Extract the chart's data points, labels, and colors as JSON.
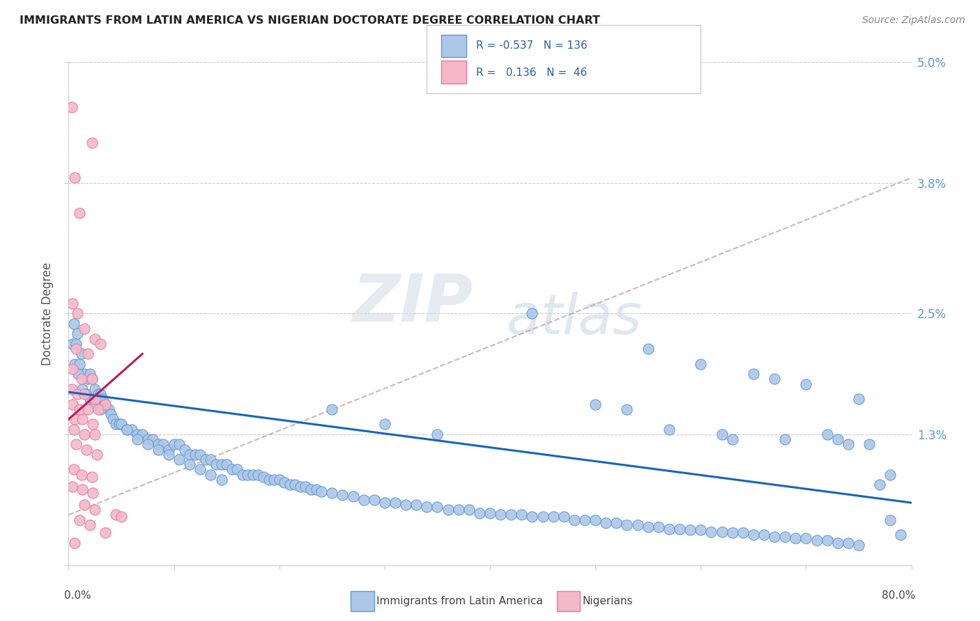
{
  "title": "IMMIGRANTS FROM LATIN AMERICA VS NIGERIAN DOCTORATE DEGREE CORRELATION CHART",
  "source": "Source: ZipAtlas.com",
  "ylabel": "Doctorate Degree",
  "ytick_vals": [
    0.0,
    1.3,
    2.5,
    3.8,
    5.0
  ],
  "ytick_labels": [
    "",
    "1.3%",
    "2.5%",
    "3.8%",
    "5.0%"
  ],
  "legend_bottom": [
    "Immigrants from Latin America",
    "Nigerians"
  ],
  "watermark_zip": "ZIP",
  "watermark_atlas": "atlas",
  "blue_color": "#5b9bd5",
  "pink_color": "#e87aA0",
  "blue_light": "#aec6e8",
  "pink_light": "#f4b8c8",
  "trend_blue_color": "#1565c0",
  "trend_pink_color": "#c2185b",
  "trend_dash_color": "#c8a0a8",
  "xmin": 0.0,
  "xmax": 80.0,
  "ymin": 0.0,
  "ymax": 5.0,
  "blue_trend": [
    1.72,
    0.62
  ],
  "pink_trend_x": [
    0.0,
    7.0
  ],
  "pink_trend_y": [
    1.45,
    2.1
  ],
  "dash_trend": [
    0.5,
    3.85
  ],
  "blue_points": [
    [
      0.5,
      2.4
    ],
    [
      0.8,
      2.3
    ],
    [
      0.4,
      2.2
    ],
    [
      1.2,
      2.1
    ],
    [
      0.6,
      2.0
    ],
    [
      1.0,
      2.0
    ],
    [
      0.7,
      2.2
    ],
    [
      1.5,
      1.9
    ],
    [
      0.9,
      1.9
    ],
    [
      1.8,
      1.85
    ],
    [
      2.0,
      1.9
    ],
    [
      2.2,
      1.85
    ],
    [
      2.5,
      1.75
    ],
    [
      2.8,
      1.7
    ],
    [
      3.0,
      1.7
    ],
    [
      3.2,
      1.65
    ],
    [
      3.5,
      1.6
    ],
    [
      3.8,
      1.55
    ],
    [
      4.0,
      1.5
    ],
    [
      1.3,
      1.75
    ],
    [
      1.6,
      1.7
    ],
    [
      2.0,
      1.65
    ],
    [
      2.5,
      1.6
    ],
    [
      3.0,
      1.55
    ],
    [
      4.2,
      1.45
    ],
    [
      4.5,
      1.4
    ],
    [
      4.8,
      1.4
    ],
    [
      5.0,
      1.4
    ],
    [
      5.5,
      1.35
    ],
    [
      6.0,
      1.35
    ],
    [
      6.5,
      1.3
    ],
    [
      7.0,
      1.3
    ],
    [
      7.5,
      1.25
    ],
    [
      8.0,
      1.25
    ],
    [
      8.5,
      1.2
    ],
    [
      9.0,
      1.2
    ],
    [
      9.5,
      1.15
    ],
    [
      10.0,
      1.2
    ],
    [
      10.5,
      1.2
    ],
    [
      11.0,
      1.15
    ],
    [
      11.5,
      1.1
    ],
    [
      12.0,
      1.1
    ],
    [
      12.5,
      1.1
    ],
    [
      13.0,
      1.05
    ],
    [
      13.5,
      1.05
    ],
    [
      14.0,
      1.0
    ],
    [
      14.5,
      1.0
    ],
    [
      15.0,
      1.0
    ],
    [
      15.5,
      0.95
    ],
    [
      16.0,
      0.95
    ],
    [
      16.5,
      0.9
    ],
    [
      17.0,
      0.9
    ],
    [
      17.5,
      0.9
    ],
    [
      18.0,
      0.9
    ],
    [
      18.5,
      0.88
    ],
    [
      19.0,
      0.85
    ],
    [
      19.5,
      0.85
    ],
    [
      20.0,
      0.85
    ],
    [
      5.5,
      1.35
    ],
    [
      6.5,
      1.25
    ],
    [
      7.5,
      1.2
    ],
    [
      8.5,
      1.15
    ],
    [
      9.5,
      1.1
    ],
    [
      10.5,
      1.05
    ],
    [
      11.5,
      1.0
    ],
    [
      12.5,
      0.95
    ],
    [
      13.5,
      0.9
    ],
    [
      14.5,
      0.85
    ],
    [
      20.5,
      0.82
    ],
    [
      21.0,
      0.8
    ],
    [
      21.5,
      0.8
    ],
    [
      22.0,
      0.78
    ],
    [
      22.5,
      0.78
    ],
    [
      23.0,
      0.75
    ],
    [
      23.5,
      0.75
    ],
    [
      24.0,
      0.73
    ],
    [
      25.0,
      0.72
    ],
    [
      26.0,
      0.7
    ],
    [
      27.0,
      0.68
    ],
    [
      28.0,
      0.65
    ],
    [
      29.0,
      0.65
    ],
    [
      30.0,
      0.62
    ],
    [
      31.0,
      0.62
    ],
    [
      32.0,
      0.6
    ],
    [
      33.0,
      0.6
    ],
    [
      34.0,
      0.58
    ],
    [
      35.0,
      0.58
    ],
    [
      36.0,
      0.55
    ],
    [
      37.0,
      0.55
    ],
    [
      38.0,
      0.55
    ],
    [
      39.0,
      0.52
    ],
    [
      40.0,
      0.52
    ],
    [
      41.0,
      0.5
    ],
    [
      42.0,
      0.5
    ],
    [
      43.0,
      0.5
    ],
    [
      44.0,
      0.48
    ],
    [
      45.0,
      0.48
    ],
    [
      46.0,
      0.48
    ],
    [
      47.0,
      0.48
    ],
    [
      48.0,
      0.45
    ],
    [
      49.0,
      0.45
    ],
    [
      50.0,
      0.45
    ],
    [
      25.0,
      1.55
    ],
    [
      30.0,
      1.4
    ],
    [
      35.0,
      1.3
    ],
    [
      44.0,
      2.5
    ],
    [
      50.0,
      1.6
    ],
    [
      53.0,
      1.55
    ],
    [
      55.0,
      2.15
    ],
    [
      57.0,
      1.35
    ],
    [
      60.0,
      2.0
    ],
    [
      62.0,
      1.3
    ],
    [
      63.0,
      1.25
    ],
    [
      65.0,
      1.9
    ],
    [
      67.0,
      1.85
    ],
    [
      68.0,
      1.25
    ],
    [
      70.0,
      1.8
    ],
    [
      72.0,
      1.3
    ],
    [
      73.0,
      1.25
    ],
    [
      74.0,
      1.2
    ],
    [
      75.0,
      1.65
    ],
    [
      76.0,
      1.2
    ],
    [
      77.0,
      0.8
    ],
    [
      78.0,
      0.9
    ],
    [
      51.0,
      0.42
    ],
    [
      52.0,
      0.42
    ],
    [
      53.0,
      0.4
    ],
    [
      54.0,
      0.4
    ],
    [
      55.0,
      0.38
    ],
    [
      56.0,
      0.38
    ],
    [
      57.0,
      0.36
    ],
    [
      58.0,
      0.36
    ],
    [
      59.0,
      0.35
    ],
    [
      60.0,
      0.35
    ],
    [
      61.0,
      0.33
    ],
    [
      62.0,
      0.33
    ],
    [
      63.0,
      0.32
    ],
    [
      64.0,
      0.32
    ],
    [
      65.0,
      0.3
    ],
    [
      66.0,
      0.3
    ],
    [
      67.0,
      0.28
    ],
    [
      68.0,
      0.28
    ],
    [
      69.0,
      0.27
    ],
    [
      70.0,
      0.27
    ],
    [
      71.0,
      0.25
    ],
    [
      72.0,
      0.25
    ],
    [
      73.0,
      0.22
    ],
    [
      74.0,
      0.22
    ],
    [
      75.0,
      0.2
    ],
    [
      78.0,
      0.45
    ],
    [
      79.0,
      0.3
    ]
  ],
  "pink_points": [
    [
      0.3,
      4.55
    ],
    [
      2.2,
      4.2
    ],
    [
      0.6,
      3.85
    ],
    [
      1.0,
      3.5
    ],
    [
      0.4,
      2.6
    ],
    [
      0.8,
      2.5
    ],
    [
      1.5,
      2.35
    ],
    [
      2.5,
      2.25
    ],
    [
      0.7,
      2.15
    ],
    [
      1.8,
      2.1
    ],
    [
      3.0,
      2.2
    ],
    [
      0.4,
      1.95
    ],
    [
      1.2,
      1.85
    ],
    [
      2.2,
      1.85
    ],
    [
      0.3,
      1.75
    ],
    [
      0.8,
      1.7
    ],
    [
      1.5,
      1.7
    ],
    [
      2.5,
      1.65
    ],
    [
      3.5,
      1.6
    ],
    [
      0.4,
      1.6
    ],
    [
      1.0,
      1.55
    ],
    [
      1.8,
      1.55
    ],
    [
      2.8,
      1.55
    ],
    [
      0.6,
      1.45
    ],
    [
      1.3,
      1.45
    ],
    [
      2.3,
      1.4
    ],
    [
      0.5,
      1.35
    ],
    [
      1.5,
      1.3
    ],
    [
      2.5,
      1.3
    ],
    [
      0.7,
      1.2
    ],
    [
      1.7,
      1.15
    ],
    [
      2.7,
      1.1
    ],
    [
      0.5,
      0.95
    ],
    [
      1.2,
      0.9
    ],
    [
      2.2,
      0.88
    ],
    [
      0.4,
      0.78
    ],
    [
      1.3,
      0.75
    ],
    [
      2.3,
      0.72
    ],
    [
      1.5,
      0.6
    ],
    [
      2.5,
      0.55
    ],
    [
      1.0,
      0.45
    ],
    [
      2.0,
      0.4
    ],
    [
      3.5,
      0.32
    ],
    [
      0.6,
      0.22
    ],
    [
      4.5,
      0.5
    ],
    [
      5.0,
      0.48
    ]
  ]
}
